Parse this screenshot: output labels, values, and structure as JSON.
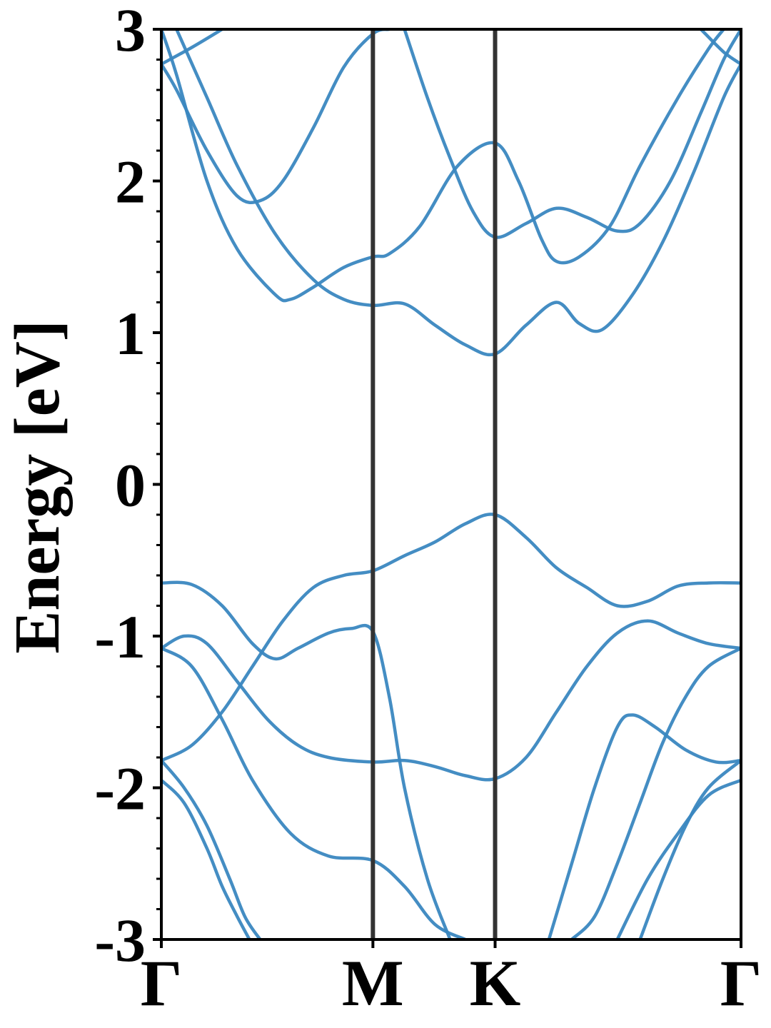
{
  "chart_data": {
    "type": "line",
    "title": "",
    "xlabel": "",
    "ylabel": "Energy [eV]",
    "ylim": [
      -3,
      3
    ],
    "yticks": [
      -3,
      -2,
      -1,
      0,
      1,
      2,
      3
    ],
    "ytick_labels": [
      "-3",
      "-2",
      "-1",
      "0",
      "1",
      "2",
      "3"
    ],
    "x_range": [
      0,
      3.814
    ],
    "kpoints": [
      {
        "label": "Γ",
        "x": 0.0
      },
      {
        "label": "M",
        "x": 1.392
      },
      {
        "label": "K",
        "x": 2.196
      },
      {
        "label": "Γ",
        "x": 3.814
      }
    ],
    "band_color": "#3a87c0",
    "kpoint_line_color": "#333333",
    "grid": false,
    "series": [
      {
        "values": [
          [
            0,
            2.77
          ],
          [
            0.2,
            2.88
          ],
          [
            0.4,
            3.0
          ]
        ]
      },
      {
        "values": [
          [
            0,
            2.77
          ],
          [
            0.1,
            2.6
          ],
          [
            0.3,
            2.2
          ],
          [
            0.5,
            1.9
          ],
          [
            0.65,
            1.87
          ],
          [
            0.8,
            2.0
          ],
          [
            1.0,
            2.35
          ],
          [
            1.2,
            2.75
          ],
          [
            1.392,
            2.97
          ],
          [
            1.5,
            3.0
          ]
        ]
      },
      {
        "values": [
          [
            0,
            3.0
          ],
          [
            0.1,
            2.7
          ],
          [
            0.3,
            2.0
          ],
          [
            0.5,
            1.55
          ],
          [
            0.75,
            1.25
          ],
          [
            0.85,
            1.22
          ],
          [
            1.0,
            1.3
          ],
          [
            1.2,
            1.43
          ],
          [
            1.392,
            1.5
          ],
          [
            1.5,
            1.52
          ],
          [
            1.7,
            1.7
          ],
          [
            1.95,
            2.1
          ],
          [
            2.196,
            2.25
          ],
          [
            2.35,
            2.0
          ],
          [
            2.5,
            1.62
          ],
          [
            2.6,
            1.47
          ],
          [
            2.75,
            1.5
          ],
          [
            2.95,
            1.7
          ],
          [
            3.15,
            2.1
          ],
          [
            3.4,
            2.55
          ],
          [
            3.6,
            2.87
          ],
          [
            3.7,
            3.0
          ]
        ]
      },
      {
        "values": [
          [
            0.1,
            3.0
          ],
          [
            0.3,
            2.55
          ],
          [
            0.5,
            2.1
          ],
          [
            0.75,
            1.65
          ],
          [
            1.0,
            1.35
          ],
          [
            1.2,
            1.22
          ],
          [
            1.392,
            1.18
          ],
          [
            1.6,
            1.19
          ],
          [
            1.8,
            1.05
          ],
          [
            2.0,
            0.92
          ],
          [
            2.196,
            0.86
          ],
          [
            2.4,
            1.05
          ],
          [
            2.6,
            1.2
          ],
          [
            2.75,
            1.06
          ],
          [
            2.9,
            1.02
          ],
          [
            3.1,
            1.25
          ],
          [
            3.3,
            1.6
          ],
          [
            3.5,
            2.05
          ],
          [
            3.7,
            2.55
          ],
          [
            3.814,
            2.77
          ]
        ]
      },
      {
        "values": [
          [
            1.6,
            3.0
          ],
          [
            1.75,
            2.55
          ],
          [
            1.9,
            2.15
          ],
          [
            2.05,
            1.8
          ],
          [
            2.196,
            1.63
          ],
          [
            2.4,
            1.72
          ],
          [
            2.6,
            1.82
          ],
          [
            2.8,
            1.76
          ],
          [
            3.0,
            1.67
          ],
          [
            3.15,
            1.72
          ],
          [
            3.35,
            2.0
          ],
          [
            3.55,
            2.45
          ],
          [
            3.7,
            2.8
          ],
          [
            3.814,
            3.0
          ]
        ]
      },
      {
        "values": [
          [
            3.55,
            3.0
          ],
          [
            3.7,
            2.85
          ],
          [
            3.814,
            2.77
          ]
        ]
      },
      {
        "values": [
          [
            0,
            -0.65
          ],
          [
            0.2,
            -0.66
          ],
          [
            0.4,
            -0.8
          ],
          [
            0.6,
            -1.05
          ],
          [
            0.75,
            -1.15
          ],
          [
            0.9,
            -1.08
          ],
          [
            1.1,
            -0.98
          ],
          [
            1.25,
            -0.95
          ],
          [
            1.392,
            -0.97
          ],
          [
            1.5,
            -1.4
          ],
          [
            1.6,
            -2.0
          ],
          [
            1.75,
            -2.6
          ],
          [
            1.9,
            -3.0
          ]
        ]
      },
      {
        "values": [
          [
            0,
            -1.08
          ],
          [
            0.15,
            -1.0
          ],
          [
            0.3,
            -1.05
          ],
          [
            0.5,
            -1.3
          ],
          [
            0.7,
            -1.55
          ],
          [
            0.9,
            -1.72
          ],
          [
            1.1,
            -1.8
          ],
          [
            1.392,
            -1.83
          ],
          [
            1.6,
            -1.82
          ],
          [
            1.8,
            -1.86
          ],
          [
            2.0,
            -1.92
          ],
          [
            2.196,
            -1.94
          ],
          [
            2.4,
            -1.8
          ],
          [
            2.6,
            -1.5
          ],
          [
            2.8,
            -1.2
          ],
          [
            3.0,
            -0.98
          ],
          [
            3.2,
            -0.9
          ],
          [
            3.4,
            -0.98
          ],
          [
            3.6,
            -1.05
          ],
          [
            3.814,
            -1.08
          ]
        ]
      },
      {
        "values": [
          [
            0,
            -1.08
          ],
          [
            0.2,
            -1.2
          ],
          [
            0.4,
            -1.55
          ],
          [
            0.6,
            -1.95
          ],
          [
            0.85,
            -2.3
          ],
          [
            1.1,
            -2.45
          ],
          [
            1.392,
            -2.48
          ],
          [
            1.6,
            -2.65
          ],
          [
            1.8,
            -2.9
          ],
          [
            2.0,
            -3.0
          ]
        ]
      },
      {
        "values": [
          [
            0,
            -1.82
          ],
          [
            0.2,
            -1.72
          ],
          [
            0.4,
            -1.5
          ],
          [
            0.6,
            -1.2
          ],
          [
            0.8,
            -0.9
          ],
          [
            1.0,
            -0.68
          ],
          [
            1.2,
            -0.6
          ],
          [
            1.392,
            -0.57
          ],
          [
            1.6,
            -0.47
          ],
          [
            1.8,
            -0.38
          ],
          [
            2.0,
            -0.26
          ],
          [
            2.196,
            -0.2
          ],
          [
            2.4,
            -0.35
          ],
          [
            2.6,
            -0.55
          ],
          [
            2.8,
            -0.68
          ],
          [
            3.0,
            -0.8
          ],
          [
            3.2,
            -0.77
          ],
          [
            3.4,
            -0.67
          ],
          [
            3.6,
            -0.65
          ],
          [
            3.814,
            -0.65
          ]
        ]
      },
      {
        "values": [
          [
            0,
            -1.82
          ],
          [
            0.15,
            -2.0
          ],
          [
            0.3,
            -2.25
          ],
          [
            0.45,
            -2.6
          ],
          [
            0.55,
            -2.85
          ],
          [
            0.65,
            -3.0
          ]
        ]
      },
      {
        "values": [
          [
            0,
            -1.95
          ],
          [
            0.15,
            -2.1
          ],
          [
            0.3,
            -2.4
          ],
          [
            0.4,
            -2.65
          ],
          [
            0.5,
            -2.85
          ],
          [
            0.58,
            -3.0
          ]
        ]
      },
      {
        "values": [
          [
            2.55,
            -3.0
          ],
          [
            2.7,
            -2.5
          ],
          [
            2.85,
            -2.0
          ],
          [
            3.0,
            -1.6
          ],
          [
            3.1,
            -1.52
          ],
          [
            3.25,
            -1.6
          ],
          [
            3.45,
            -1.75
          ],
          [
            3.65,
            -1.83
          ],
          [
            3.814,
            -1.82
          ]
        ]
      },
      {
        "values": [
          [
            2.7,
            -3.0
          ],
          [
            2.85,
            -2.85
          ],
          [
            3.0,
            -2.5
          ],
          [
            3.15,
            -2.1
          ],
          [
            3.3,
            -1.7
          ],
          [
            3.45,
            -1.4
          ],
          [
            3.6,
            -1.2
          ],
          [
            3.814,
            -1.08
          ]
        ]
      },
      {
        "values": [
          [
            3.0,
            -3.0
          ],
          [
            3.2,
            -2.6
          ],
          [
            3.4,
            -2.3
          ],
          [
            3.6,
            -2.05
          ],
          [
            3.814,
            -1.95
          ]
        ]
      },
      {
        "values": [
          [
            3.15,
            -3.0
          ],
          [
            3.3,
            -2.6
          ],
          [
            3.45,
            -2.25
          ],
          [
            3.6,
            -2.0
          ],
          [
            3.814,
            -1.82
          ]
        ]
      }
    ]
  }
}
